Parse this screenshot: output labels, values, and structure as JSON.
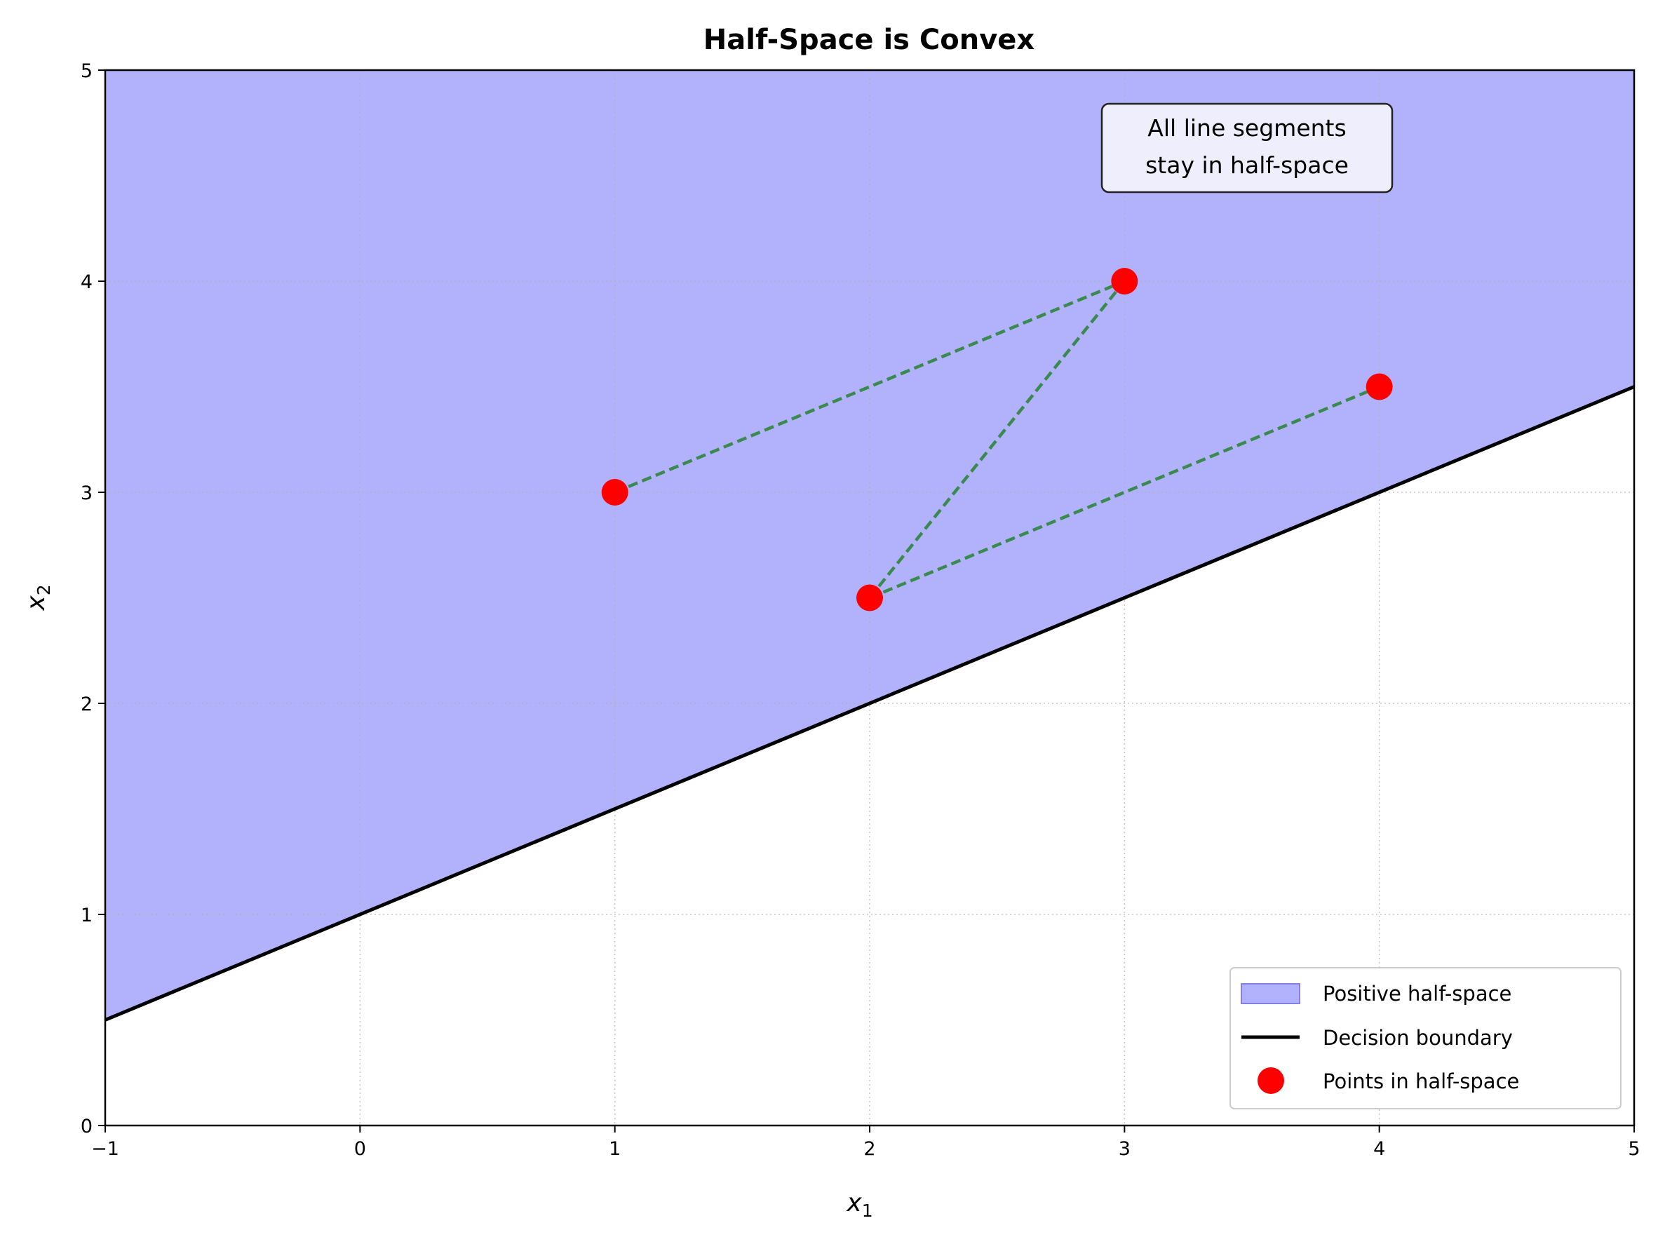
{
  "chart_data": {
    "type": "line",
    "title": "Half-Space is Convex",
    "xlabel": "x",
    "xlabel_sub": "1",
    "ylabel": "x",
    "ylabel_sub": "2",
    "xlim": [
      -1,
      5
    ],
    "ylim": [
      0,
      5
    ],
    "x_ticks": [
      -1,
      0,
      1,
      2,
      3,
      4,
      5
    ],
    "x_tick_labels": [
      "−1",
      "0",
      "1",
      "2",
      "3",
      "4",
      "5"
    ],
    "y_ticks": [
      0,
      1,
      2,
      3,
      4,
      5
    ],
    "y_tick_labels": [
      "0",
      "1",
      "2",
      "3",
      "4",
      "5"
    ],
    "grid": true,
    "decision_boundary": {
      "slope": 0.5,
      "intercept": 1,
      "x": [
        -1,
        5
      ],
      "y": [
        0.5,
        3.5
      ]
    },
    "points": [
      {
        "x": 1,
        "y": 3
      },
      {
        "x": 3,
        "y": 4
      },
      {
        "x": 2,
        "y": 2.5
      },
      {
        "x": 4,
        "y": 3.5
      }
    ],
    "segments": [
      {
        "from": [
          1,
          3
        ],
        "to": [
          3,
          4
        ]
      },
      {
        "from": [
          2,
          2.5
        ],
        "to": [
          3,
          4
        ]
      },
      {
        "from": [
          2,
          2.5
        ],
        "to": [
          4,
          3.5
        ]
      }
    ],
    "annotation": {
      "lines": [
        "All line segments",
        "stay in half-space"
      ],
      "x": 3.5,
      "y": 4.6
    },
    "legend": {
      "placement": "lower-right",
      "entries": [
        "Positive half-space",
        "Decision boundary",
        "Points in half-space"
      ]
    },
    "colors": {
      "fill": "#b2b2fc",
      "fill_edge": "#8080f0",
      "boundary": "#000000",
      "points": "#ff0000",
      "segments": "#3a8a50",
      "annotation_bg": "#eeeefc"
    }
  }
}
